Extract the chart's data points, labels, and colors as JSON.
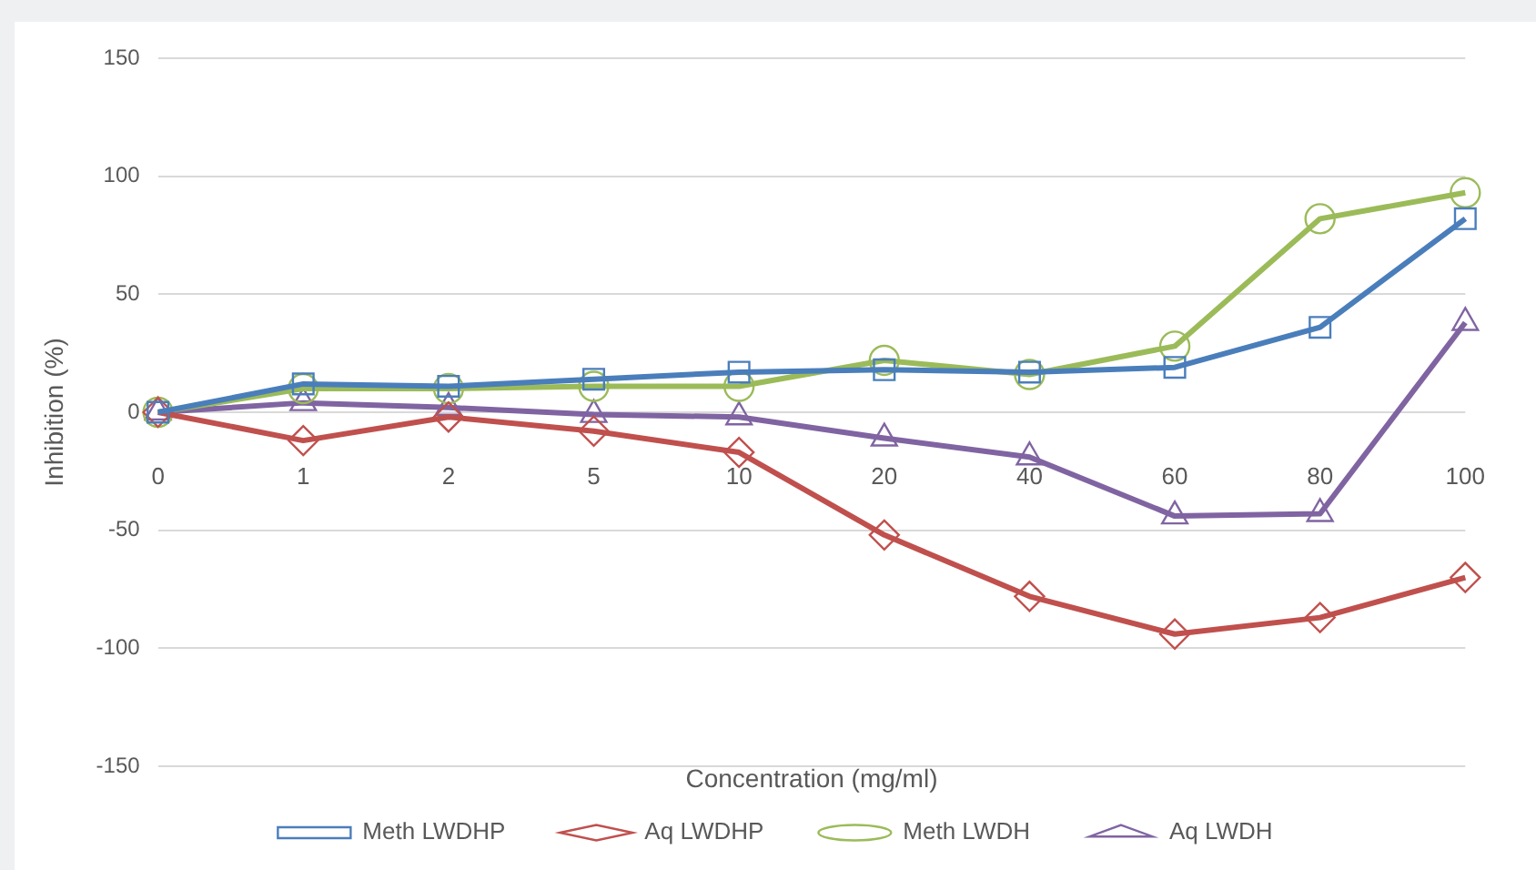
{
  "chart_data": {
    "type": "line",
    "xlabel": "Concentration (mg/ml)",
    "ylabel": "Inhibition (%)",
    "categories": [
      "0",
      "1",
      "2",
      "5",
      "10",
      "20",
      "40",
      "60",
      "80",
      "100"
    ],
    "series": [
      {
        "name": "Meth LWDHP",
        "color": "#4a7ebb",
        "marker": "square",
        "values": [
          0,
          12,
          11,
          14,
          17,
          18,
          17,
          19,
          36,
          82
        ]
      },
      {
        "name": "Aq LWDHP",
        "color": "#c0504d",
        "marker": "diamond",
        "values": [
          0,
          -12,
          -2,
          -8,
          -17,
          -52,
          -78,
          -94,
          -87,
          -70
        ]
      },
      {
        "name": "Meth LWDH",
        "color": "#9bbb59",
        "marker": "circle",
        "values": [
          0,
          10,
          10,
          11,
          11,
          22,
          16,
          28,
          82,
          93
        ]
      },
      {
        "name": "Aq LWDH",
        "color": "#8064a2",
        "marker": "triangle",
        "values": [
          0,
          4,
          2,
          -1,
          -2,
          -11,
          -19,
          -44,
          -43,
          38
        ]
      }
    ],
    "ylim": [
      -150,
      150
    ],
    "yticks": [
      -150,
      -100,
      -50,
      0,
      50,
      100,
      150
    ],
    "grid": "y",
    "legend": "bottom"
  }
}
